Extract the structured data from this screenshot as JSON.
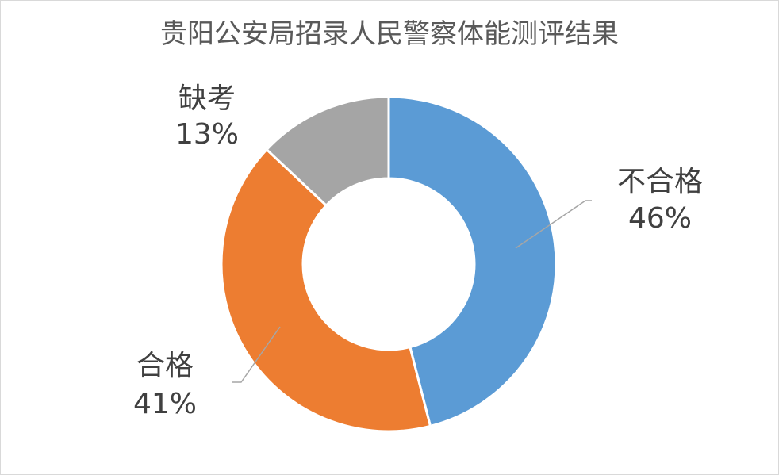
{
  "chart_data": {
    "type": "pie",
    "variant": "donut",
    "title": "贵阳公安局招录人民警察体能测评结果",
    "categories": [
      "不合格",
      "合格",
      "缺考"
    ],
    "values": [
      46,
      41,
      13
    ],
    "value_labels": [
      "46%",
      "41%",
      "13%"
    ],
    "colors": [
      "#5b9bd5",
      "#ed7d31",
      "#a5a5a5"
    ],
    "legend": "none",
    "data_labels": "outside-with-leader-lines"
  }
}
